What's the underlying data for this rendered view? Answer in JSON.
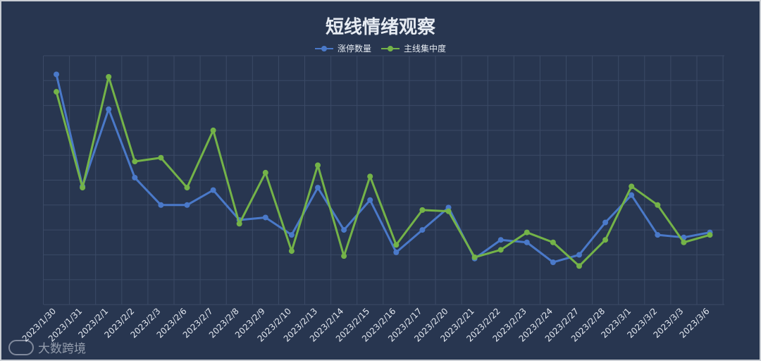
{
  "chart_data": {
    "type": "line",
    "title": "短线情绪观察",
    "categories": [
      "2023/1/30",
      "2023/1/31",
      "2023/2/1",
      "2023/2/2",
      "2023/2/3",
      "2023/2/6",
      "2023/2/7",
      "2023/2/8",
      "2023/2/9",
      "2023/2/10",
      "2023/2/13",
      "2023/2/14",
      "2023/2/15",
      "2023/2/16",
      "2023/2/17",
      "2023/2/20",
      "2023/2/21",
      "2023/2/22",
      "2023/2/23",
      "2023/2/24",
      "2023/2/27",
      "2023/2/28",
      "2023/3/1",
      "2023/3/2",
      "2023/3/3",
      "2023/3/6"
    ],
    "series": [
      {
        "name": "涨停数量",
        "color": "#4a79c9",
        "values": [
          92.5,
          47.5,
          78.5,
          51,
          40,
          40,
          46,
          34,
          35,
          28,
          47,
          30,
          42,
          21,
          30,
          39,
          18.5,
          26,
          25,
          17,
          20,
          33,
          44,
          28,
          27,
          29
        ]
      },
      {
        "name": "主线集中度",
        "color": "#74b348",
        "values": [
          85.5,
          47,
          91.5,
          57.5,
          59,
          47,
          70,
          32.5,
          53,
          21.5,
          56,
          19.5,
          51.5,
          24,
          38,
          37.5,
          19,
          22,
          29,
          25,
          15.5,
          26,
          47.5,
          40,
          25,
          28
        ]
      }
    ],
    "ylim": [
      0,
      100
    ],
    "grid": true,
    "legend_position": "top-center",
    "axis_labels_shown": false
  },
  "watermark": {
    "text": "大数跨境"
  }
}
